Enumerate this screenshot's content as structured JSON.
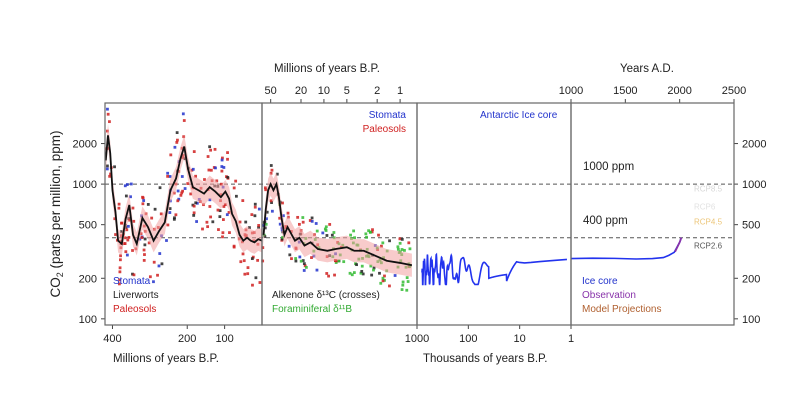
{
  "chart_data": {
    "type": "scatter",
    "y_axis": {
      "label_main": "CO",
      "label_sub": "2",
      "label_rest": " (parts per million, ppm)",
      "scale": "log",
      "ylim": [
        90,
        4000
      ],
      "ticks": [
        100,
        200,
        500,
        1000,
        2000
      ],
      "tick_labels": [
        "100",
        "200",
        "500",
        "1000",
        "2000"
      ]
    },
    "reference_lines": [
      {
        "value": 1000,
        "label": "1000 ppm"
      },
      {
        "value": 400,
        "label": "400 ppm"
      }
    ],
    "panels": [
      {
        "id": "paleozoic",
        "x_range": [
          420,
          0
        ],
        "x_bottom_label": "Millions of years B.P.",
        "x_bottom_ticks": [
          400,
          200,
          100
        ],
        "x_bottom_tick_labels": [
          "400",
          "200",
          "100"
        ],
        "legend": [
          {
            "text": "Stomata",
            "color": "#2233cc"
          },
          {
            "text": "Liverworts",
            "color": "#222222"
          },
          {
            "text": "Paleosols",
            "color": "#d02020"
          }
        ],
        "fit_curve": [
          [
            418,
            1500
          ],
          [
            412,
            2300
          ],
          [
            406,
            1700
          ],
          [
            400,
            900
          ],
          [
            392,
            620
          ],
          [
            385,
            380
          ],
          [
            375,
            360
          ],
          [
            365,
            550
          ],
          [
            355,
            700
          ],
          [
            345,
            420
          ],
          [
            335,
            360
          ],
          [
            320,
            560
          ],
          [
            305,
            480
          ],
          [
            290,
            380
          ],
          [
            275,
            450
          ],
          [
            260,
            520
          ],
          [
            245,
            900
          ],
          [
            230,
            1100
          ],
          [
            218,
            1550
          ],
          [
            208,
            1900
          ],
          [
            198,
            1300
          ],
          [
            185,
            950
          ],
          [
            170,
            900
          ],
          [
            155,
            850
          ],
          [
            140,
            950
          ],
          [
            125,
            880
          ],
          [
            110,
            800
          ],
          [
            98,
            880
          ],
          [
            88,
            780
          ],
          [
            80,
            600
          ],
          [
            70,
            530
          ],
          [
            60,
            420
          ],
          [
            50,
            380
          ],
          [
            40,
            400
          ],
          [
            30,
            380
          ],
          [
            20,
            370
          ],
          [
            10,
            390
          ],
          [
            0,
            380
          ]
        ]
      },
      {
        "id": "cenozoic",
        "x_range": [
          65,
          0.6
        ],
        "x_scale": "log",
        "x_top_label": "Millions of years B.P.",
        "x_top_ticks": [
          50,
          20,
          10,
          5,
          2,
          1
        ],
        "x_top_tick_labels": [
          "50",
          "20",
          "10",
          "5",
          "2",
          "1"
        ],
        "legend_top": [
          {
            "text": "Stomata",
            "color": "#2233cc"
          },
          {
            "text": "Paleosols",
            "color": "#d02020"
          }
        ],
        "legend_bottom": [
          {
            "text": "Alkenone δ¹³C (crosses)",
            "color": "#222222"
          },
          {
            "text": "Foraminiferal δ¹¹B",
            "color": "#33bb33"
          }
        ],
        "fit_curve": [
          [
            62,
            420
          ],
          [
            58,
            650
          ],
          [
            54,
            900
          ],
          [
            50,
            1000
          ],
          [
            46,
            900
          ],
          [
            42,
            1000
          ],
          [
            39,
            800
          ],
          [
            36,
            560
          ],
          [
            33,
            420
          ],
          [
            30,
            480
          ],
          [
            27,
            430
          ],
          [
            24,
            380
          ],
          [
            21,
            400
          ],
          [
            18,
            350
          ],
          [
            15,
            370
          ],
          [
            12,
            330
          ],
          [
            9,
            320
          ],
          [
            7,
            330
          ],
          [
            5,
            340
          ],
          [
            4,
            320
          ],
          [
            3,
            320
          ],
          [
            2,
            290
          ],
          [
            1.5,
            270
          ],
          [
            1,
            260
          ],
          [
            0.7,
            250
          ]
        ]
      },
      {
        "id": "pleistocene",
        "x_range": [
          1000,
          1
        ],
        "x_scale": "log",
        "x_bottom_label": "Thousands of years B.P.",
        "x_bottom_ticks": [
          1000,
          100,
          10,
          1
        ],
        "x_bottom_tick_labels": [
          "1000",
          "100",
          "10",
          "1"
        ],
        "series_label": {
          "text": "Antarctic Ice core",
          "color": "#2233cc"
        }
      },
      {
        "id": "modern",
        "x_range": [
          1000,
          2500
        ],
        "x_top_label": "Years A.D.",
        "x_top_ticks": [
          1000,
          1500,
          2000,
          2500
        ],
        "x_top_tick_labels": [
          "1000",
          "1500",
          "2000",
          "2500"
        ],
        "legend": [
          {
            "text": "Ice core",
            "color": "#2233cc"
          },
          {
            "text": "Observation",
            "color": "#8833aa"
          },
          {
            "text": "Model Projections",
            "color": "#b06030"
          }
        ],
        "scenario_labels": [
          "RCP8.5",
          "RCP6",
          "RCP4.5",
          "RCP2.6"
        ],
        "ice_core_line": [
          [
            1000,
            280
          ],
          [
            1200,
            282
          ],
          [
            1400,
            281
          ],
          [
            1600,
            278
          ],
          [
            1750,
            280
          ],
          [
            1850,
            285
          ],
          [
            1900,
            296
          ],
          [
            1950,
            312
          ],
          [
            2000,
            370
          ],
          [
            2015,
            400
          ]
        ]
      }
    ]
  }
}
